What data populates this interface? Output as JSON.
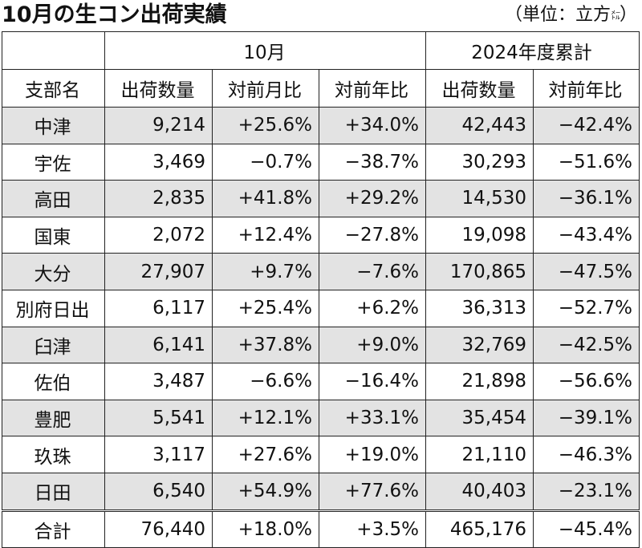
{
  "title": "10月の生コン出荷実績",
  "unit_main": "（単位：立方",
  "unit_small": "㍍",
  "unit_close": "）",
  "header": {
    "group_month": "10月",
    "group_year": "2024年度累計",
    "cols": [
      "支部名",
      "出荷数量",
      "対前月比",
      "対前年比",
      "出荷数量",
      "対前年比"
    ]
  },
  "rows": [
    {
      "name": "中津",
      "m_qty": "9,214",
      "m_mom": "+25.6%",
      "m_yoy": "+34.0%",
      "y_qty": "42,443",
      "y_yoy": "−42.4%"
    },
    {
      "name": "宇佐",
      "m_qty": "3,469",
      "m_mom": "−0.7%",
      "m_yoy": "−38.7%",
      "y_qty": "30,293",
      "y_yoy": "−51.6%"
    },
    {
      "name": "高田",
      "m_qty": "2,835",
      "m_mom": "+41.8%",
      "m_yoy": "+29.2%",
      "y_qty": "14,530",
      "y_yoy": "−36.1%"
    },
    {
      "name": "国東",
      "m_qty": "2,072",
      "m_mom": "+12.4%",
      "m_yoy": "−27.8%",
      "y_qty": "19,098",
      "y_yoy": "−43.4%"
    },
    {
      "name": "大分",
      "m_qty": "27,907",
      "m_mom": "+9.7%",
      "m_yoy": "−7.6%",
      "y_qty": "170,865",
      "y_yoy": "−47.5%"
    },
    {
      "name": "別府日出",
      "m_qty": "6,117",
      "m_mom": "+25.4%",
      "m_yoy": "+6.2%",
      "y_qty": "36,313",
      "y_yoy": "−52.7%"
    },
    {
      "name": "臼津",
      "m_qty": "6,141",
      "m_mom": "+37.8%",
      "m_yoy": "+9.0%",
      "y_qty": "32,769",
      "y_yoy": "−42.5%"
    },
    {
      "name": "佐伯",
      "m_qty": "3,487",
      "m_mom": "−6.6%",
      "m_yoy": "−16.4%",
      "y_qty": "21,898",
      "y_yoy": "−56.6%"
    },
    {
      "name": "豊肥",
      "m_qty": "5,541",
      "m_mom": "+12.1%",
      "m_yoy": "+33.1%",
      "y_qty": "35,454",
      "y_yoy": "−39.1%"
    },
    {
      "name": "玖珠",
      "m_qty": "3,117",
      "m_mom": "+27.6%",
      "m_yoy": "+19.0%",
      "y_qty": "21,110",
      "y_yoy": "−46.3%"
    },
    {
      "name": "日田",
      "m_qty": "6,540",
      "m_mom": "+54.9%",
      "m_yoy": "+77.6%",
      "y_qty": "40,403",
      "y_yoy": "−23.1%"
    }
  ],
  "total": {
    "name": "合計",
    "m_qty": "76,440",
    "m_mom": "+18.0%",
    "m_yoy": "+3.5%",
    "y_qty": "465,176",
    "y_yoy": "−45.4%"
  },
  "colors": {
    "row_shade": "#e3e3e3",
    "border": "#222222"
  }
}
